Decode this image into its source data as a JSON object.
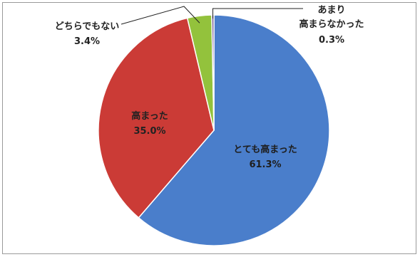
{
  "chart_data": {
    "type": "pie",
    "start_angle": "12 o'clock",
    "direction": "clockwise",
    "slices": [
      {
        "label": "とても高まった",
        "value": 61.3,
        "value_text": "61.3%",
        "color": "#4a7ecb"
      },
      {
        "label": "高まった",
        "value": 35.0,
        "value_text": "35.0%",
        "color": "#cb3b36"
      },
      {
        "label": "どちらでもない",
        "value": 3.4,
        "value_text": "3.4%",
        "color": "#93c23c"
      },
      {
        "label_lines": [
          "あまり",
          "高まらなかった"
        ],
        "value": 0.3,
        "value_text": "0.3%",
        "color": "#6e4f8f"
      }
    ]
  }
}
